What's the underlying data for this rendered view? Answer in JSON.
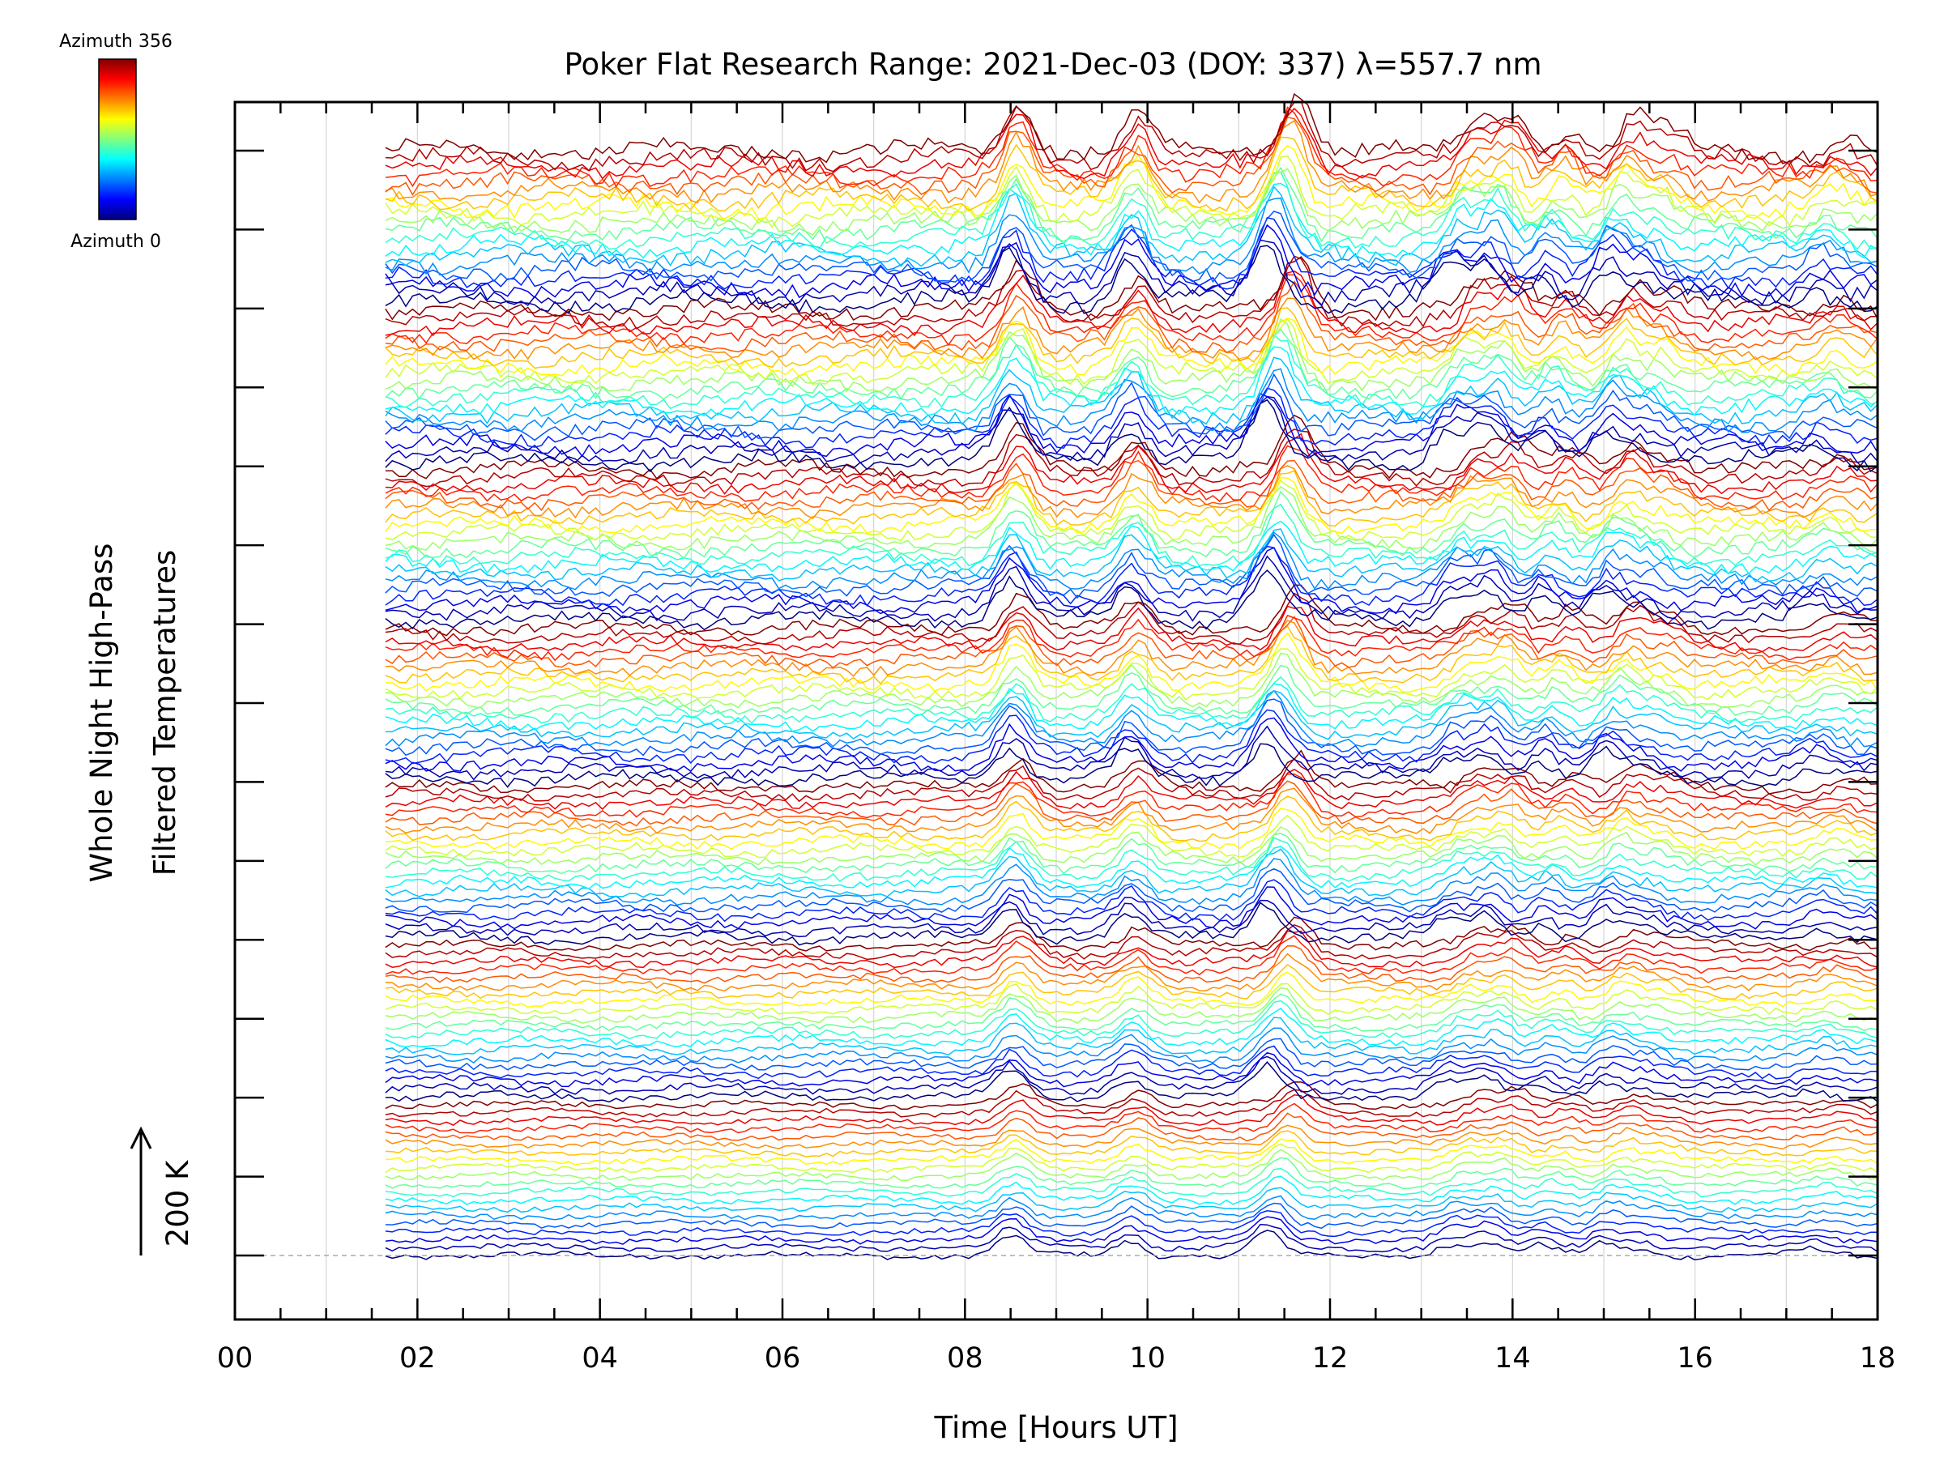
{
  "chart_data": {
    "type": "line",
    "title": "Poker Flat Research Range: 2021-Dec-03 (DOY: 337) λ=557.7 nm",
    "xlabel": "Time [Hours UT]",
    "ylabel_line1": "Whole Night High-Pass",
    "ylabel_line2": "Filtered Temperatures",
    "xlim": [
      0,
      18
    ],
    "x_start": 1.65,
    "x_end": 18,
    "x_ticks": [
      "00",
      "02",
      "04",
      "06",
      "08",
      "10",
      "12",
      "14",
      "16",
      "18"
    ],
    "x_tick_values": [
      0,
      2,
      4,
      6,
      8,
      10,
      12,
      14,
      16,
      18
    ],
    "x_minor_step": 0.5,
    "y_major_tick_count": 15,
    "scale_bar_label": "200 K",
    "colorbar": {
      "top_label": "Azimuth 356",
      "bottom_label": "Azimuth 0",
      "azimuth_min": 0,
      "azimuth_max": 356
    },
    "series_description": "Stacked high-pass filtered temperature traces, one per azimuth bin, colored by azimuth",
    "series_count": 140,
    "groups": 7,
    "series_per_group": 20,
    "features": [
      {
        "time": 8.5,
        "amp": 1.6
      },
      {
        "time": 9.8,
        "amp": 1.3
      },
      {
        "time": 11.3,
        "amp": 2.0
      },
      {
        "time": 13.3,
        "amp": 1.0
      },
      {
        "time": 13.7,
        "amp": 1.2
      },
      {
        "time": 14.3,
        "amp": 0.8
      },
      {
        "time": 15.0,
        "amp": 1.1
      },
      {
        "time": 15.4,
        "amp": 0.6
      },
      {
        "time": 17.3,
        "amp": 0.5
      }
    ],
    "grid": true
  }
}
